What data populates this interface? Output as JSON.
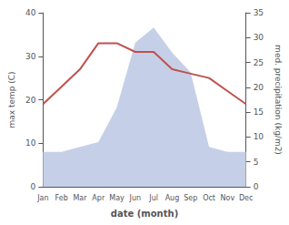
{
  "chart_data": {
    "type": "line",
    "xlabel": "date (month)",
    "ylabel": "max temp (C)",
    "y2label": "med. precipitation (kg/m2)",
    "categories": [
      "Jan",
      "Feb",
      "Mar",
      "Apr",
      "May",
      "Jun",
      "Jul",
      "Aug",
      "Sep",
      "Oct",
      "Nov",
      "Dec"
    ],
    "series": [
      {
        "type": "line",
        "color": "#c0504d",
        "values": [
          19,
          23,
          27,
          33,
          33,
          31,
          31,
          27,
          26,
          25,
          22,
          19
        ]
      },
      {
        "type": "area",
        "color": "#c5d0e8",
        "axis": "y2",
        "values": [
          7,
          7,
          8,
          9,
          16,
          29,
          32,
          27,
          23,
          8,
          7,
          7
        ]
      }
    ],
    "ylim": [
      0,
      40
    ],
    "yticks": [
      0,
      10,
      20,
      30,
      40
    ],
    "y2lim": [
      0,
      35
    ],
    "y2ticks": [
      0,
      5,
      10,
      15,
      20,
      25,
      30,
      35
    ],
    "grid": false
  }
}
